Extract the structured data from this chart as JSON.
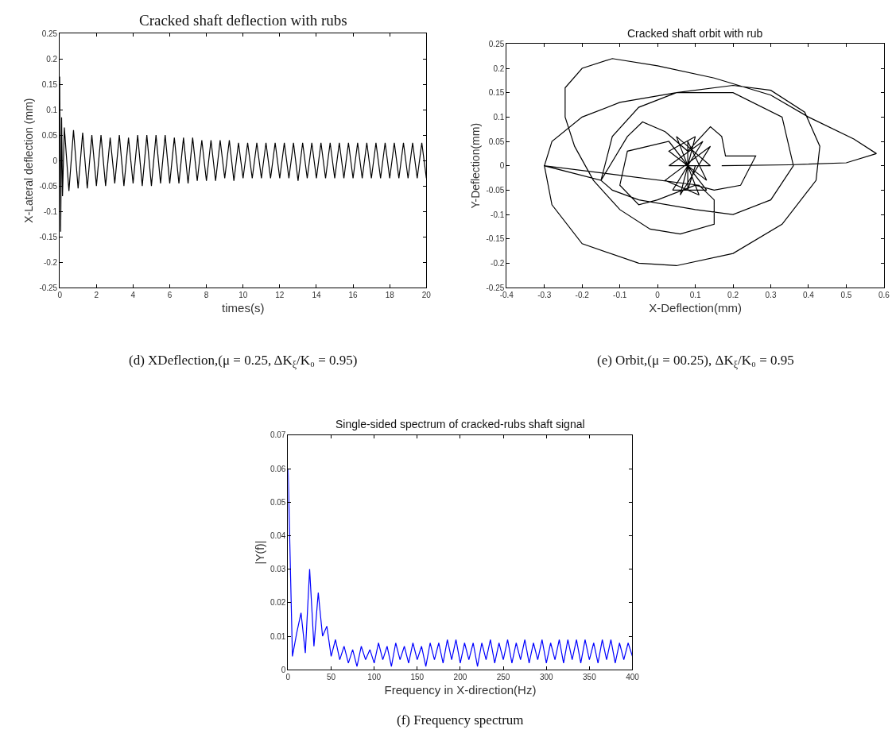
{
  "chart_data": [
    {
      "type": "line",
      "title": "Cracked shaft deflection with rubs",
      "xlabel": "times(s)",
      "ylabel": "X-Lateral deflection (mm)",
      "annotations": [
        "(d) XDeflection,(μ = 0.25, ΔK$_{ξ}$/K₀ = 0.95)"
      ],
      "x": [
        0,
        0.05,
        0.1,
        0.15,
        0.25,
        0.5,
        0.75,
        1,
        1.25,
        1.5,
        1.75,
        2,
        2.25,
        2.5,
        2.75,
        3,
        3.25,
        3.5,
        3.75,
        4,
        4.25,
        4.5,
        4.75,
        5,
        5.25,
        5.5,
        5.75,
        6,
        6.25,
        6.5,
        6.75,
        7,
        7.25,
        7.5,
        7.75,
        8,
        8.25,
        8.5,
        8.75,
        9,
        9.25,
        9.5,
        9.75,
        10,
        10.25,
        10.5,
        10.75,
        11,
        11.25,
        11.5,
        11.75,
        12,
        12.25,
        12.5,
        12.75,
        13,
        13.25,
        13.5,
        13.75,
        14,
        14.25,
        14.5,
        14.75,
        15,
        15.25,
        15.5,
        15.75,
        16,
        16.25,
        16.5,
        16.75,
        17,
        17.25,
        17.5,
        17.75,
        18,
        18.25,
        18.5,
        18.75,
        19,
        19.25,
        19.5,
        19.75,
        20
      ],
      "series": [
        {
          "color": "#000000",
          "values": [
            0.165,
            -0.14,
            0.085,
            -0.07,
            0.065,
            -0.06,
            0.06,
            -0.055,
            0.055,
            -0.055,
            0.05,
            -0.05,
            0.05,
            -0.05,
            0.045,
            -0.045,
            0.05,
            -0.05,
            0.045,
            -0.045,
            0.05,
            -0.05,
            0.05,
            -0.05,
            0.05,
            -0.045,
            0.05,
            -0.045,
            0.045,
            -0.045,
            0.045,
            -0.045,
            0.045,
            -0.04,
            0.04,
            -0.04,
            0.04,
            -0.04,
            0.04,
            -0.035,
            0.04,
            -0.04,
            0.035,
            -0.035,
            0.035,
            -0.035,
            0.035,
            -0.035,
            0.035,
            -0.035,
            0.035,
            -0.035,
            0.035,
            -0.035,
            0.035,
            -0.04,
            0.035,
            -0.035,
            0.035,
            -0.035,
            0.035,
            -0.035,
            0.035,
            -0.035,
            0.035,
            -0.035,
            0.035,
            -0.035,
            0.035,
            -0.035,
            0.035,
            -0.035,
            0.035,
            -0.035,
            0.035,
            -0.035,
            0.035,
            -0.035,
            0.035,
            -0.035,
            0.035,
            -0.035,
            0.035,
            -0.035
          ]
        }
      ],
      "xlim": [
        0,
        20
      ],
      "xticks": [
        0,
        2,
        4,
        6,
        8,
        10,
        12,
        14,
        16,
        18,
        20
      ],
      "ylim": [
        -0.25,
        0.25
      ],
      "yticks": [
        -0.25,
        -0.2,
        -0.15,
        -0.1,
        -0.05,
        0,
        0.05,
        0.1,
        0.15,
        0.2,
        0.25
      ]
    },
    {
      "type": "line",
      "title": "Cracked shaft orbit with rub",
      "xlabel": "X-Deflection(mm)",
      "ylabel": "Y-Deflection(mm)",
      "annotations": [
        "(e) Orbit,(μ = 00.25), ΔK$_{ξ}$/K₀ = 0.95"
      ],
      "series": [
        {
          "color": "#000000",
          "x": [
            0.17,
            0.35,
            0.5,
            0.58,
            0.52,
            0.4,
            0.3,
            0.15,
            0.0,
            -0.12,
            -0.2,
            -0.245,
            -0.245,
            -0.22,
            -0.17,
            -0.1,
            -0.02,
            0.06,
            0.15,
            0.15,
            0.11,
            -0.3,
            -0.28,
            -0.2,
            -0.05,
            0.05,
            0.2,
            0.33,
            0.42,
            0.43,
            0.39,
            0.3,
            0.2,
            0.05,
            -0.1,
            -0.2,
            -0.28,
            -0.3,
            -0.15,
            -0.12,
            -0.05,
            0.05,
            0.2,
            0.33,
            0.36,
            0.3,
            0.2,
            0.1,
            -0.05,
            -0.12,
            -0.15,
            -0.08,
            -0.04,
            0.02,
            0.08,
            0.14,
            0.17,
            0.18,
            0.26,
            0.22,
            0.15,
            0.1,
            0.0,
            -0.05,
            -0.1,
            -0.08,
            0.03,
            0.13,
            0.04,
            0.12,
            0.03,
            0.14,
            0.05,
            0.11,
            0.02,
            0.14,
            0.06,
            0.1,
            0.03,
            0.13,
            0.08,
            0.08,
            0.1
          ],
          "values": [
            0,
            0.002,
            0.006,
            0.025,
            0.055,
            0.1,
            0.145,
            0.18,
            0.205,
            0.22,
            0.2,
            0.16,
            0.1,
            0.04,
            -0.03,
            -0.09,
            -0.13,
            -0.14,
            -0.12,
            -0.07,
            -0.04,
            0.0,
            -0.08,
            -0.16,
            -0.2,
            -0.205,
            -0.18,
            -0.12,
            -0.03,
            0.04,
            0.11,
            0.155,
            0.165,
            0.15,
            0.13,
            0.1,
            0.05,
            0.0,
            -0.03,
            0.06,
            0.12,
            0.15,
            0.15,
            0.1,
            0.0,
            -0.07,
            -0.1,
            -0.09,
            -0.07,
            -0.05,
            -0.03,
            0.06,
            0.09,
            0.07,
            0.03,
            0.08,
            0.06,
            0.02,
            0.02,
            -0.04,
            -0.05,
            -0.04,
            -0.07,
            -0.08,
            -0.04,
            0.03,
            0.05,
            -0.05,
            -0.05,
            0.05,
            0.0,
            0.0,
            0.06,
            -0.06,
            -0.03,
            0.04,
            -0.06,
            0.06,
            0.03,
            -0.03,
            0.05,
            -0.05,
            0.0
          ]
        }
      ],
      "xlim": [
        -0.4,
        0.6
      ],
      "xticks": [
        -0.4,
        -0.3,
        -0.2,
        -0.1,
        0,
        0.1,
        0.2,
        0.3,
        0.4,
        0.5,
        0.6
      ],
      "ylim": [
        -0.25,
        0.25
      ],
      "yticks": [
        -0.25,
        -0.2,
        -0.15,
        -0.1,
        -0.05,
        0,
        0.05,
        0.1,
        0.15,
        0.2,
        0.25
      ]
    },
    {
      "type": "line",
      "title": "Single-sided spectrum of cracked-rubs shaft signal",
      "xlabel": "Frequency in X-direction(Hz)",
      "ylabel": "|Y(f)|",
      "annotations": [
        "(f) Frequency spectrum"
      ],
      "x": [
        0,
        5,
        10,
        15,
        20,
        25,
        30,
        35,
        40,
        45,
        50,
        55,
        60,
        65,
        70,
        75,
        80,
        85,
        90,
        95,
        100,
        105,
        110,
        115,
        120,
        125,
        130,
        135,
        140,
        145,
        150,
        155,
        160,
        165,
        170,
        175,
        180,
        185,
        190,
        195,
        200,
        205,
        210,
        215,
        220,
        225,
        230,
        235,
        240,
        245,
        250,
        255,
        260,
        265,
        270,
        275,
        280,
        285,
        290,
        295,
        300,
        305,
        310,
        315,
        320,
        325,
        330,
        335,
        340,
        345,
        350,
        355,
        360,
        365,
        370,
        375,
        380,
        385,
        390,
        395,
        400
      ],
      "series": [
        {
          "color": "#0000ff",
          "values": [
            0.06,
            0.004,
            0.011,
            0.017,
            0.005,
            0.03,
            0.007,
            0.023,
            0.01,
            0.013,
            0.004,
            0.009,
            0.003,
            0.007,
            0.002,
            0.006,
            0.001,
            0.007,
            0.003,
            0.006,
            0.002,
            0.008,
            0.003,
            0.007,
            0.001,
            0.008,
            0.003,
            0.007,
            0.002,
            0.008,
            0.003,
            0.007,
            0.001,
            0.008,
            0.003,
            0.008,
            0.002,
            0.009,
            0.003,
            0.009,
            0.002,
            0.008,
            0.003,
            0.008,
            0.001,
            0.008,
            0.003,
            0.009,
            0.002,
            0.008,
            0.003,
            0.009,
            0.002,
            0.008,
            0.003,
            0.009,
            0.002,
            0.008,
            0.003,
            0.009,
            0.002,
            0.008,
            0.003,
            0.009,
            0.002,
            0.009,
            0.003,
            0.009,
            0.002,
            0.009,
            0.003,
            0.008,
            0.002,
            0.009,
            0.003,
            0.009,
            0.002,
            0.008,
            0.003,
            0.008,
            0.004
          ]
        }
      ],
      "xlim": [
        0,
        400
      ],
      "xticks": [
        0,
        50,
        100,
        150,
        200,
        250,
        300,
        350,
        400
      ],
      "ylim": [
        0,
        0.07
      ],
      "yticks": [
        0,
        0.01,
        0.02,
        0.03,
        0.04,
        0.05,
        0.06,
        0.07
      ]
    }
  ]
}
